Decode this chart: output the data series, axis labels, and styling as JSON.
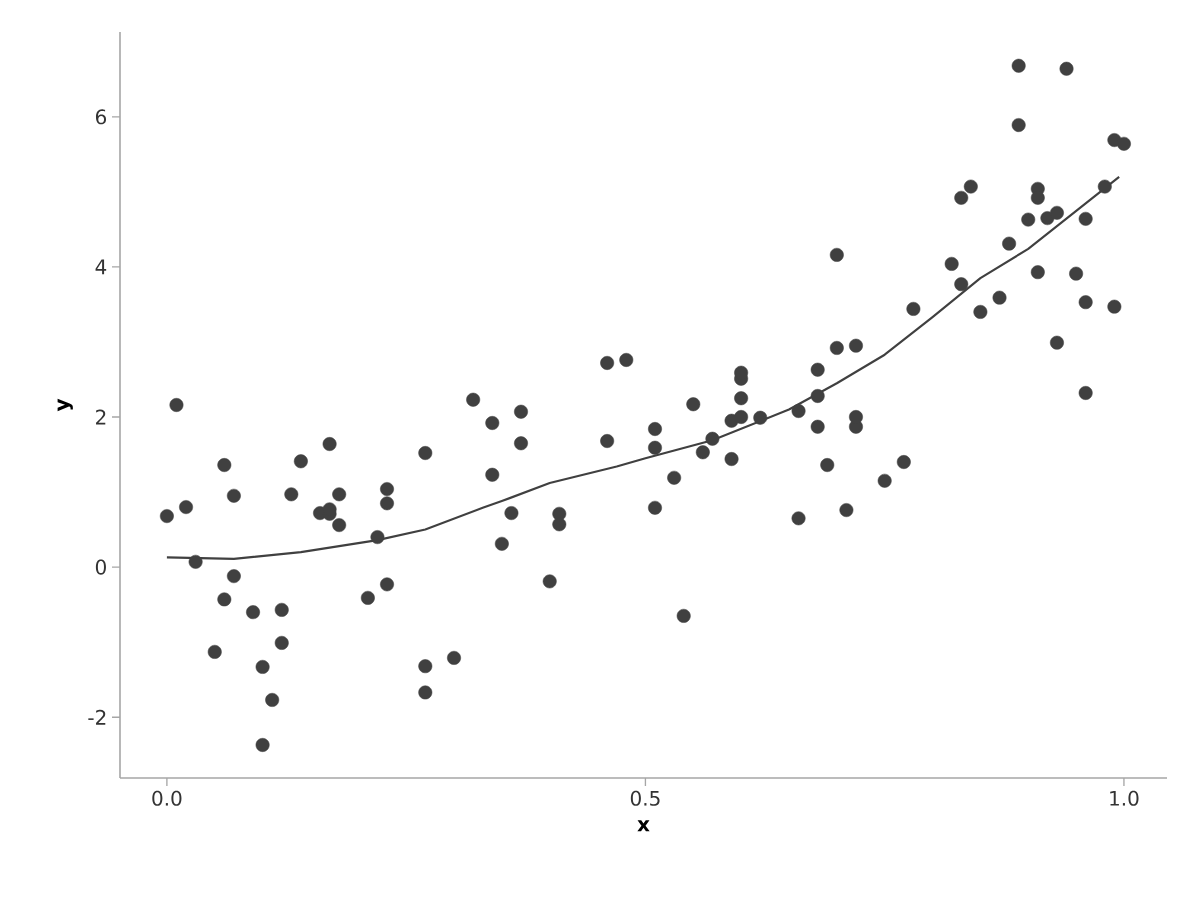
{
  "chart_data": {
    "type": "scatter",
    "xlabel": "x",
    "ylabel": "y",
    "xlim": [
      -0.049,
      1.045
    ],
    "ylim": [
      -2.81,
      7.13
    ],
    "xticks": [
      {
        "value": 0,
        "label": "0.0"
      },
      0.5,
      {
        "value": 1,
        "label": "1.0"
      }
    ],
    "yticks": [
      -2,
      0,
      2,
      4,
      6
    ],
    "grid": false,
    "series": [
      {
        "marker": "circle",
        "color": "#404040",
        "x": [
          0.0,
          0.01,
          0.02,
          0.03,
          0.05,
          0.06,
          0.06,
          0.07,
          0.07,
          0.09,
          0.1,
          0.1,
          0.11,
          0.12,
          0.12,
          0.13,
          0.14,
          0.16,
          0.17,
          0.17,
          0.17,
          0.18,
          0.18,
          0.21,
          0.22,
          0.23,
          0.23,
          0.23,
          0.27,
          0.27,
          0.27,
          0.3,
          0.32,
          0.34,
          0.34,
          0.35,
          0.36,
          0.37,
          0.37,
          0.4,
          0.41,
          0.41,
          0.46,
          0.46,
          0.48,
          0.51,
          0.51,
          0.51,
          0.53,
          0.54,
          0.55,
          0.56,
          0.57,
          0.59,
          0.59,
          0.6,
          0.6,
          0.6,
          0.6,
          0.62,
          0.66,
          0.66,
          0.68,
          0.68,
          0.68,
          0.69,
          0.7,
          0.7,
          0.71,
          0.72,
          0.72,
          0.72,
          0.75,
          0.77,
          0.78,
          0.82,
          0.83,
          0.83,
          0.84,
          0.85,
          0.87,
          0.88,
          0.89,
          0.89,
          0.9,
          0.91,
          0.91,
          0.91,
          0.92,
          0.93,
          0.93,
          0.94,
          0.95,
          0.96,
          0.96,
          0.96,
          0.98,
          0.99,
          0.99,
          1.0
        ],
        "values": [
          0.68,
          2.16,
          0.8,
          0.07,
          -1.13,
          -0.43,
          1.36,
          -0.12,
          0.95,
          -0.6,
          -1.33,
          -2.37,
          -1.77,
          -0.57,
          -1.01,
          0.97,
          1.41,
          0.72,
          1.64,
          0.71,
          0.77,
          0.97,
          0.56,
          -0.41,
          0.4,
          0.85,
          -0.23,
          1.04,
          -1.67,
          1.52,
          -1.32,
          -1.21,
          2.23,
          1.23,
          1.92,
          0.31,
          0.72,
          2.07,
          1.65,
          -0.19,
          0.71,
          0.57,
          2.72,
          1.68,
          2.76,
          0.79,
          1.84,
          1.59,
          1.19,
          -0.65,
          2.17,
          1.53,
          1.71,
          1.44,
          1.95,
          2.0,
          2.51,
          2.25,
          2.59,
          1.99,
          2.08,
          0.65,
          2.63,
          2.28,
          1.87,
          1.36,
          4.16,
          2.92,
          0.76,
          2.95,
          1.87,
          2.0,
          1.15,
          1.4,
          3.44,
          4.04,
          3.77,
          4.92,
          5.07,
          3.4,
          3.59,
          4.31,
          6.68,
          5.89,
          4.63,
          3.93,
          5.04,
          4.92,
          4.65,
          2.99,
          4.72,
          6.64,
          3.91,
          4.64,
          2.32,
          3.53,
          5.07,
          5.69,
          3.47,
          5.64
        ]
      },
      {
        "type": "line",
        "marker": "none",
        "color": "#404040",
        "x": [
          0,
          0.07,
          0.14,
          0.22,
          0.27,
          0.33,
          0.35,
          0.4,
          0.47,
          0.5,
          0.57,
          0.65,
          0.7,
          0.75,
          0.8,
          0.85,
          0.9,
          0.995
        ],
        "values": [
          0.13,
          0.11,
          0.2,
          0.36,
          0.5,
          0.79,
          0.88,
          1.12,
          1.34,
          1.45,
          1.69,
          2.1,
          2.45,
          2.83,
          3.33,
          3.85,
          4.24,
          5.2
        ]
      }
    ]
  }
}
